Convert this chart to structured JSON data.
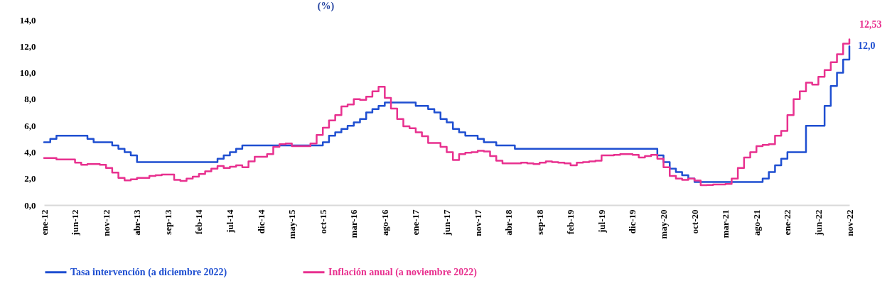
{
  "chart_data": {
    "type": "step",
    "title": "(%)",
    "categories": [
      "ene-12",
      null,
      null,
      null,
      null,
      "jun-12",
      null,
      null,
      null,
      null,
      "nov-12",
      null,
      null,
      null,
      null,
      "abr-13",
      null,
      null,
      null,
      null,
      "sep-13",
      null,
      null,
      null,
      null,
      "feb-14",
      null,
      null,
      null,
      null,
      "jul-14",
      null,
      null,
      null,
      null,
      "dic-14",
      null,
      null,
      null,
      null,
      "may-15",
      null,
      null,
      null,
      null,
      "oct-15",
      null,
      null,
      null,
      null,
      "mar-16",
      null,
      null,
      null,
      null,
      "ago-16",
      null,
      null,
      null,
      null,
      "ene-17",
      null,
      null,
      null,
      null,
      "jun-17",
      null,
      null,
      null,
      null,
      "nov-17",
      null,
      null,
      null,
      null,
      "abr-18",
      null,
      null,
      null,
      null,
      "sep-18",
      null,
      null,
      null,
      null,
      "feb-19",
      null,
      null,
      null,
      null,
      "jul-19",
      null,
      null,
      null,
      null,
      "dic-19",
      null,
      null,
      null,
      null,
      "may-20",
      null,
      null,
      null,
      null,
      "oct-20",
      null,
      null,
      null,
      null,
      "mar-21",
      null,
      null,
      null,
      null,
      "ago-21",
      null,
      null,
      null,
      null,
      "ene-22",
      null,
      null,
      null,
      null,
      "jun-22",
      null,
      null,
      null,
      null,
      "nov-22"
    ],
    "series": [
      {
        "name": "Tasa intervención (a diciembre 2022)",
        "color": "#1f4fd1",
        "values": [
          4.75,
          5.0,
          5.25,
          5.25,
          5.25,
          5.25,
          5.25,
          5.0,
          4.75,
          4.75,
          4.75,
          4.5,
          4.25,
          4.0,
          3.75,
          3.25,
          3.25,
          3.25,
          3.25,
          3.25,
          3.25,
          3.25,
          3.25,
          3.25,
          3.25,
          3.25,
          3.25,
          3.25,
          3.5,
          3.75,
          4.0,
          4.25,
          4.5,
          4.5,
          4.5,
          4.5,
          4.5,
          4.5,
          4.5,
          4.5,
          4.5,
          4.5,
          4.5,
          4.5,
          4.5,
          4.75,
          5.25,
          5.5,
          5.75,
          6.0,
          6.25,
          6.5,
          7.0,
          7.25,
          7.5,
          7.75,
          7.75,
          7.75,
          7.75,
          7.75,
          7.5,
          7.5,
          7.25,
          7.0,
          6.5,
          6.25,
          5.75,
          5.5,
          5.25,
          5.25,
          5.0,
          4.75,
          4.75,
          4.5,
          4.5,
          4.5,
          4.25,
          4.25,
          4.25,
          4.25,
          4.25,
          4.25,
          4.25,
          4.25,
          4.25,
          4.25,
          4.25,
          4.25,
          4.25,
          4.25,
          4.25,
          4.25,
          4.25,
          4.25,
          4.25,
          4.25,
          4.25,
          4.25,
          4.25,
          3.75,
          3.25,
          2.75,
          2.5,
          2.25,
          2.0,
          1.75,
          1.75,
          1.75,
          1.75,
          1.75,
          1.75,
          1.75,
          1.75,
          1.75,
          1.75,
          1.75,
          2.0,
          2.5,
          3.0,
          3.5,
          4.0,
          4.0,
          4.0,
          6.0,
          6.0,
          6.0,
          7.5,
          9.0,
          10.0,
          11.0,
          12.0
        ],
        "value_labels": [
          null,
          null,
          null,
          null,
          null,
          null,
          null,
          null,
          null,
          null,
          null,
          null,
          null,
          null,
          null,
          null,
          null,
          null,
          null,
          null,
          null,
          null,
          null,
          null,
          null,
          null,
          null,
          null,
          null,
          null,
          null,
          null,
          null,
          null,
          null,
          null,
          null,
          null,
          null,
          null,
          null,
          null,
          null,
          null,
          null,
          null,
          null,
          null,
          null,
          null,
          null,
          null,
          null,
          null,
          null,
          null,
          null,
          null,
          null,
          null,
          null,
          null,
          null,
          null,
          null,
          null,
          null,
          null,
          null,
          null,
          null,
          null,
          null,
          null,
          null,
          null,
          null,
          null,
          null,
          null,
          null,
          null,
          null,
          null,
          null,
          null,
          null,
          null,
          null,
          null,
          null,
          null,
          null,
          null,
          null,
          null,
          null,
          null,
          null,
          null,
          null,
          null,
          null,
          null,
          null,
          null,
          null,
          null,
          null,
          null,
          null,
          null,
          null,
          null,
          null,
          null,
          null,
          null,
          null,
          null,
          null,
          null,
          null,
          null,
          null,
          null,
          null,
          null,
          null,
          null,
          "12,0"
        ]
      },
      {
        "name": "Inflación anual (a noviembre 2022)",
        "color": "#e8318f",
        "values": [
          3.55,
          3.55,
          3.45,
          3.45,
          3.45,
          3.2,
          3.05,
          3.1,
          3.1,
          3.05,
          2.8,
          2.45,
          2.05,
          1.87,
          1.95,
          2.05,
          2.05,
          2.2,
          2.25,
          2.3,
          2.3,
          1.9,
          1.82,
          2.0,
          2.15,
          2.35,
          2.55,
          2.75,
          2.95,
          2.8,
          2.9,
          3.0,
          2.85,
          3.3,
          3.65,
          3.65,
          3.85,
          4.4,
          4.6,
          4.65,
          4.45,
          4.45,
          4.45,
          4.65,
          5.3,
          5.85,
          6.4,
          6.8,
          7.45,
          7.6,
          8.0,
          7.95,
          8.2,
          8.6,
          8.95,
          8.1,
          7.3,
          6.5,
          5.95,
          5.8,
          5.5,
          5.2,
          4.7,
          4.7,
          4.4,
          4.0,
          3.4,
          3.85,
          3.95,
          4.0,
          4.1,
          4.05,
          3.7,
          3.35,
          3.15,
          3.15,
          3.15,
          3.2,
          3.15,
          3.1,
          3.2,
          3.3,
          3.25,
          3.2,
          3.15,
          3.0,
          3.2,
          3.25,
          3.3,
          3.35,
          3.75,
          3.75,
          3.8,
          3.85,
          3.85,
          3.8,
          3.6,
          3.7,
          3.8,
          3.5,
          2.85,
          2.2,
          2.0,
          1.9,
          2.0,
          1.85,
          1.5,
          1.52,
          1.55,
          1.55,
          1.6,
          2.0,
          2.8,
          3.6,
          4.0,
          4.45,
          4.55,
          4.6,
          5.25,
          5.6,
          6.8,
          8.0,
          8.6,
          9.25,
          9.1,
          9.7,
          10.2,
          10.8,
          11.4,
          12.2,
          12.53
        ],
        "value_labels": [
          null,
          null,
          null,
          null,
          null,
          null,
          null,
          null,
          null,
          null,
          null,
          null,
          null,
          null,
          null,
          null,
          null,
          null,
          null,
          null,
          null,
          null,
          null,
          null,
          null,
          null,
          null,
          null,
          null,
          null,
          null,
          null,
          null,
          null,
          null,
          null,
          null,
          null,
          null,
          null,
          null,
          null,
          null,
          null,
          null,
          null,
          null,
          null,
          null,
          null,
          null,
          null,
          null,
          null,
          null,
          null,
          null,
          null,
          null,
          null,
          null,
          null,
          null,
          null,
          null,
          null,
          null,
          null,
          null,
          null,
          null,
          null,
          null,
          null,
          null,
          null,
          null,
          null,
          null,
          null,
          null,
          null,
          null,
          null,
          null,
          null,
          null,
          null,
          null,
          null,
          null,
          null,
          null,
          null,
          null,
          null,
          null,
          null,
          null,
          null,
          null,
          null,
          null,
          null,
          null,
          null,
          null,
          null,
          null,
          null,
          null,
          null,
          null,
          null,
          null,
          null,
          null,
          null,
          null,
          null,
          null,
          null,
          null,
          null,
          null,
          null,
          null,
          null,
          null,
          null,
          "12,53"
        ]
      }
    ],
    "ylim": [
      0,
      14
    ],
    "yticks": [
      {
        "value": 0,
        "label": "0,0"
      },
      {
        "value": 2,
        "label": "2,0"
      },
      {
        "value": 4,
        "label": "4,0"
      },
      {
        "value": 6,
        "label": "6,0"
      },
      {
        "value": 8,
        "label": "8,0"
      },
      {
        "value": 10,
        "label": "10,0"
      },
      {
        "value": 12,
        "label": "12,0"
      },
      {
        "value": 14,
        "label": "14,0"
      }
    ],
    "grid": false,
    "legend": "bottom"
  }
}
